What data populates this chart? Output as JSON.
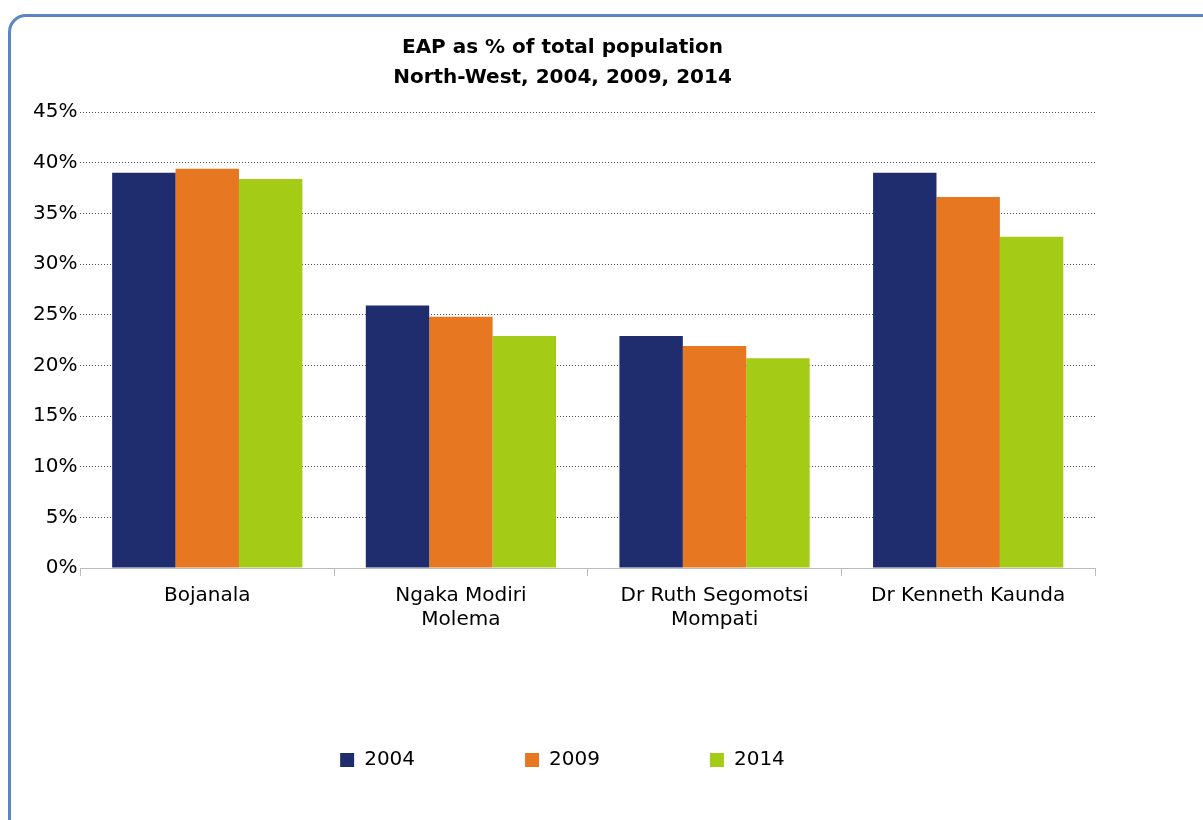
{
  "chart_data": {
    "type": "bar",
    "title": "EAP as % of total population",
    "subtitle": "North-West, 2004, 2009, 2014",
    "categories": [
      "Bojanala",
      "Ngaka Modiri Molema",
      "Dr Ruth Segomotsi Mompati",
      "Dr Kenneth Kaunda"
    ],
    "series": [
      {
        "name": "2004",
        "color": "#1f2d6e",
        "values": [
          39.0,
          25.9,
          22.9,
          39.0
        ]
      },
      {
        "name": "2009",
        "color": "#e87722",
        "values": [
          39.4,
          24.8,
          21.9,
          36.6
        ]
      },
      {
        "name": "2014",
        "color": "#a4cc16",
        "values": [
          38.4,
          22.9,
          20.7,
          32.7
        ]
      }
    ],
    "ylim": [
      0,
      45
    ],
    "yticks": [
      {
        "value": 0,
        "label": "0%"
      },
      {
        "value": 5,
        "label": "5%"
      },
      {
        "value": 10,
        "label": "10%"
      },
      {
        "value": 15,
        "label": "15%"
      },
      {
        "value": 20,
        "label": "20%"
      },
      {
        "value": 25,
        "label": "25%"
      },
      {
        "value": 30,
        "label": "30%"
      },
      {
        "value": 35,
        "label": "35%"
      },
      {
        "value": 40,
        "label": "40%"
      },
      {
        "value": 45,
        "label": "45%"
      }
    ],
    "grid": "y",
    "legend": "bottom"
  }
}
